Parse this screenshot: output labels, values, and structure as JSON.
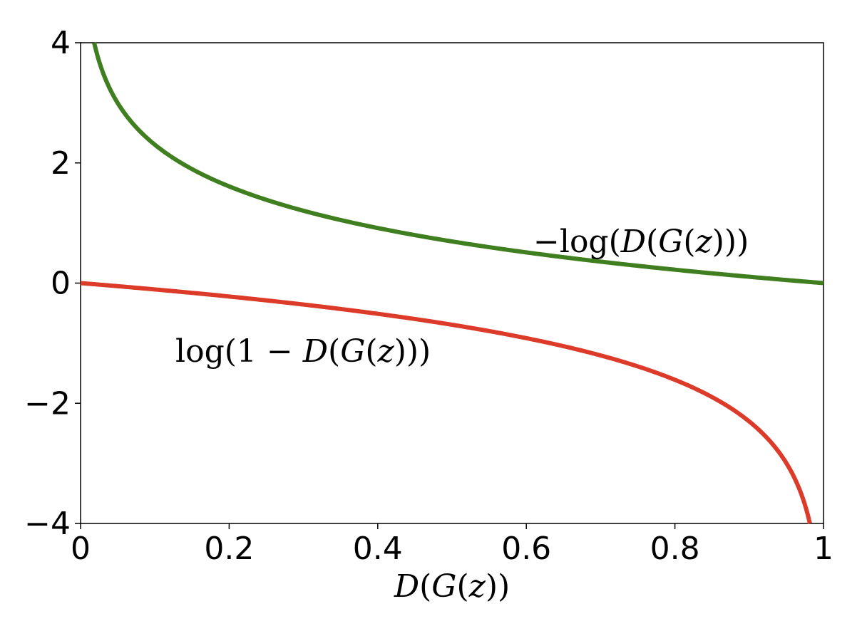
{
  "chart_data": {
    "type": "line",
    "title": "",
    "xlabel": "D(G(z))",
    "ylabel": "",
    "xlim": [
      0,
      1
    ],
    "ylim": [
      -4,
      4
    ],
    "grid": false,
    "x_ticks": [
      0,
      0.2,
      0.4,
      0.6,
      0.8,
      1
    ],
    "x_tick_labels": [
      "0",
      "0.2",
      "0.4",
      "0.6",
      "0.8",
      "1"
    ],
    "y_ticks": [
      4,
      2,
      0,
      -2,
      -4
    ],
    "y_tick_labels": [
      "4",
      "2",
      "0",
      "−2",
      "−4"
    ],
    "series": [
      {
        "name": "−log(D(G(z)))",
        "function": "-log(x)",
        "color": "#3f7f1f",
        "x": [
          0.0183,
          0.03,
          0.05,
          0.1,
          0.2,
          0.3,
          0.4,
          0.5,
          0.6,
          0.7,
          0.8,
          0.9,
          1.0
        ],
        "values": [
          4.0,
          3.51,
          3.0,
          2.3,
          1.61,
          1.2,
          0.92,
          0.69,
          0.51,
          0.36,
          0.22,
          0.11,
          0.0
        ]
      },
      {
        "name": "log(1 − D(G(z)))",
        "function": "log(1-x)",
        "color": "#dd3b2a",
        "x": [
          0.0,
          0.1,
          0.2,
          0.3,
          0.4,
          0.5,
          0.6,
          0.7,
          0.8,
          0.9,
          0.95,
          0.97,
          0.9817
        ],
        "values": [
          0.0,
          -0.11,
          -0.22,
          -0.36,
          -0.51,
          -0.69,
          -0.92,
          -1.2,
          -1.61,
          -2.3,
          -3.0,
          -3.51,
          -4.0
        ]
      }
    ],
    "annotations": [
      {
        "series": 0,
        "text": "−log(D(G(z)))",
        "near": "upper-right, above green curve"
      },
      {
        "series": 1,
        "text": "log(1 − D(G(z)))",
        "near": "left-center, below red curve"
      }
    ]
  }
}
